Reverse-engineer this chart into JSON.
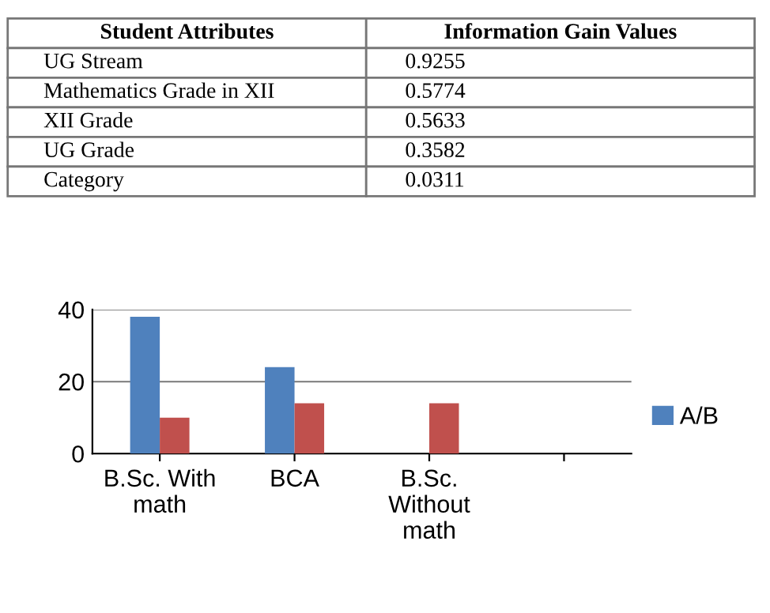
{
  "chart_data": [
    {
      "type": "other",
      "categories": [
        "Student Attributes",
        "Information Gain Values"
      ],
      "y_categories": [
        "UG Stream",
        "Mathematics Grade in XII",
        "XII Grade",
        "UG Grade",
        "Category"
      ],
      "cell_labels": [
        [
          "0.9255"
        ],
        [
          "0.5774"
        ],
        [
          "0.5633"
        ],
        [
          "0.3582"
        ],
        [
          "0.0311"
        ]
      ]
    },
    {
      "type": "bar",
      "categories": [
        "B.Sc. With\nmath",
        "BCA",
        "B.Sc.\nWithout\nmath",
        null
      ],
      "series": [
        {
          "name": "A/B",
          "color": "#4f81bd",
          "values": [
            38,
            24,
            null,
            null
          ]
        },
        {
          "color": "#c0504d",
          "values": [
            10,
            14,
            14,
            null
          ]
        }
      ],
      "ylim": [
        0,
        40
      ],
      "yticks": [
        0,
        20,
        40
      ],
      "grid": "y",
      "legend": "right"
    }
  ]
}
